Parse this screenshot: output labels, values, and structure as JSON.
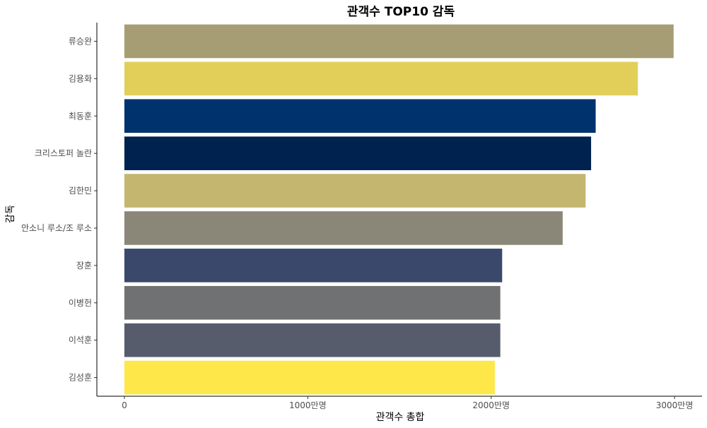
{
  "chart_data": {
    "type": "bar",
    "orientation": "horizontal",
    "title": "관객수 TOP10 감독",
    "xlabel": "관객수 총합",
    "ylabel": "감독",
    "categories": [
      "류승완",
      "김용화",
      "최동훈",
      "크리스토퍼 놀란",
      "김한민",
      "안소니 루소/조 루소",
      "장훈",
      "이병헌",
      "이석훈",
      "김성훈"
    ],
    "values": [
      29950000,
      28000000,
      25700000,
      25450000,
      25150000,
      23900000,
      20600000,
      20500000,
      20500000,
      20200000
    ],
    "colors": [
      "#A69D74",
      "#E2CF5A",
      "#00326E",
      "#00224E",
      "#C4B66E",
      "#8B8778",
      "#3A486B",
      "#707173",
      "#575C6D",
      "#FEE748"
    ],
    "xlim": [
      -1500000,
      31500000
    ],
    "xticks": [
      0,
      10000000,
      20000000,
      30000000
    ],
    "xtick_labels": [
      "0",
      "1000만명",
      "2000만명",
      "3000만명"
    ],
    "grid": false,
    "legend": false
  }
}
